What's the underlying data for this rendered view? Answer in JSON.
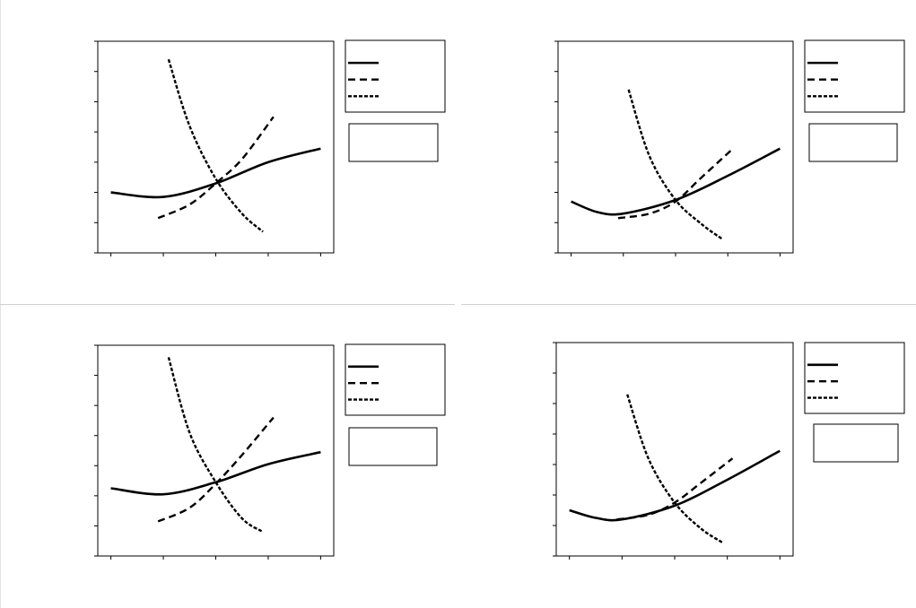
{
  "chart_data": [
    {
      "type": "line",
      "xlim": [
        0.75,
        5.25
      ],
      "ylim": [
        0,
        7
      ],
      "x_ticks": [
        1,
        2,
        3,
        4,
        5
      ],
      "y_ticks": [
        0,
        1,
        2,
        3,
        4,
        5,
        6,
        7
      ],
      "grid": false,
      "legend": "top-right",
      "series": [
        {
          "style": "solid",
          "x": [
            1,
            2,
            3,
            4,
            5
          ],
          "y": [
            2.0,
            1.85,
            2.3,
            3.0,
            3.45
          ]
        },
        {
          "style": "dashed",
          "x": [
            1.9,
            2.5,
            3.0,
            3.5,
            4.1
          ],
          "y": [
            1.15,
            1.6,
            2.3,
            3.1,
            4.5
          ]
        },
        {
          "style": "dotted",
          "x": [
            2.1,
            2.5,
            3.0,
            3.5,
            3.9
          ],
          "y": [
            6.4,
            4.2,
            2.45,
            1.3,
            0.7
          ]
        }
      ]
    },
    {
      "type": "line",
      "xlim": [
        0.75,
        5.25
      ],
      "ylim": [
        0,
        7
      ],
      "x_ticks": [
        1,
        2,
        3,
        4,
        5
      ],
      "y_ticks": [
        0,
        1,
        2,
        3,
        4,
        5,
        6,
        7
      ],
      "grid": false,
      "legend": "top-right",
      "series": [
        {
          "style": "solid",
          "x": [
            1,
            1.5,
            2,
            3,
            4,
            5
          ],
          "y": [
            1.7,
            1.35,
            1.3,
            1.75,
            2.55,
            3.45
          ]
        },
        {
          "style": "dashed",
          "x": [
            1.9,
            2.5,
            3.0,
            3.5,
            4.1
          ],
          "y": [
            1.15,
            1.3,
            1.7,
            2.5,
            3.45
          ]
        },
        {
          "style": "dotted",
          "x": [
            2.1,
            2.5,
            3.0,
            3.5,
            3.9
          ],
          "y": [
            5.4,
            3.2,
            1.75,
            0.95,
            0.45
          ]
        }
      ]
    },
    {
      "type": "line",
      "xlim": [
        0.75,
        5.25
      ],
      "ylim": [
        0,
        7
      ],
      "x_ticks": [
        1,
        2,
        3,
        4,
        5
      ],
      "y_ticks": [
        0,
        1,
        2,
        3,
        4,
        5,
        6,
        7
      ],
      "grid": false,
      "legend": "top-right",
      "series": [
        {
          "style": "solid",
          "x": [
            1,
            2,
            3,
            4,
            5
          ],
          "y": [
            2.25,
            2.05,
            2.45,
            3.05,
            3.45
          ]
        },
        {
          "style": "dashed",
          "x": [
            1.9,
            2.5,
            3.0,
            3.5,
            4.1
          ],
          "y": [
            1.15,
            1.6,
            2.4,
            3.35,
            4.6
          ]
        },
        {
          "style": "dotted",
          "x": [
            2.1,
            2.5,
            3.0,
            3.5,
            3.9
          ],
          "y": [
            6.6,
            4.1,
            2.45,
            1.25,
            0.8
          ]
        }
      ]
    },
    {
      "type": "line",
      "xlim": [
        0.75,
        5.25
      ],
      "ylim": [
        0,
        7
      ],
      "x_ticks": [
        1,
        2,
        3,
        4,
        5
      ],
      "y_ticks": [
        0,
        1,
        2,
        3,
        4,
        5,
        6,
        7
      ],
      "grid": false,
      "legend": "top-right",
      "series": [
        {
          "style": "solid",
          "x": [
            1,
            1.5,
            2,
            3,
            4,
            5
          ],
          "y": [
            1.5,
            1.25,
            1.2,
            1.65,
            2.5,
            3.45
          ]
        },
        {
          "style": "dashed",
          "x": [
            1.9,
            2.5,
            3.0,
            3.5,
            4.1
          ],
          "y": [
            1.2,
            1.35,
            1.75,
            2.4,
            3.2
          ]
        },
        {
          "style": "dotted",
          "x": [
            2.1,
            2.5,
            3.0,
            3.5,
            3.9
          ],
          "y": [
            5.3,
            3.2,
            1.75,
            0.9,
            0.45
          ]
        }
      ]
    }
  ]
}
